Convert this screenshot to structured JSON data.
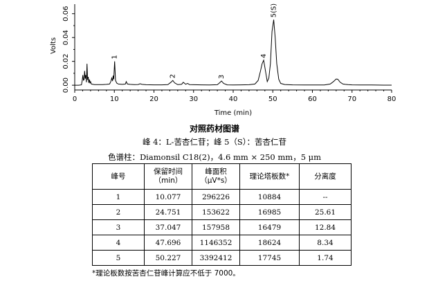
{
  "chart_data": {
    "type": "line",
    "xlabel": "Time (min)",
    "ylabel": "Volts",
    "xlim": [
      0,
      80
    ],
    "ylim": [
      -0.004,
      0.068
    ],
    "xticks": [
      0,
      10,
      20,
      30,
      40,
      50,
      60,
      70,
      80
    ],
    "yticks": [
      0.0,
      0.02,
      0.04,
      0.06
    ],
    "ytick_labels": [
      "0.00",
      "0.02",
      "0.04",
      "0.06"
    ],
    "grid": false,
    "series": [
      {
        "x": [
          0,
          1,
          1.7,
          1.9,
          2.05,
          2.2,
          2.35,
          2.5,
          2.65,
          2.8,
          2.95,
          3.1,
          3.25,
          3.4,
          3.55,
          3.7,
          3.85,
          4.0,
          4.2,
          4.5,
          5,
          6,
          7,
          8,
          8.8,
          9.1,
          9.35,
          9.55,
          9.7,
          9.85,
          10.077,
          10.3,
          10.6,
          11,
          12,
          12.8,
          13.0,
          13.3,
          14,
          15,
          16,
          16.5,
          17,
          18,
          20,
          22,
          23.5,
          24.3,
          24.751,
          25.2,
          26,
          27,
          27.4,
          28,
          28.5,
          29,
          30,
          32,
          34,
          36,
          36.5,
          37.047,
          37.6,
          38.5,
          40,
          42,
          44,
          45.5,
          46.3,
          46.9,
          47.3,
          47.696,
          48.1,
          48.6,
          49.0,
          49.4,
          49.8,
          50.227,
          50.6,
          51.0,
          51.5,
          52,
          53,
          55,
          58,
          61,
          63,
          64.5,
          65.3,
          66.0,
          66.4,
          67.0,
          67.7,
          68.3,
          69,
          70,
          72,
          75,
          78,
          80
        ],
        "y": [
          0.0,
          0.0,
          0.0003,
          0.0042,
          0.0085,
          0.0042,
          0.0045,
          0.012,
          0.0055,
          0.0085,
          0.0025,
          0.018,
          0.0045,
          0.007,
          0.002,
          0.0048,
          0.0016,
          0.003,
          0.001,
          0.0008,
          0.0005,
          0.0005,
          0.0005,
          0.0007,
          0.001,
          0.003,
          0.006,
          0.0035,
          0.008,
          0.005,
          0.02,
          0.004,
          0.0018,
          0.001,
          0.0007,
          0.001,
          0.003,
          0.001,
          0.0007,
          0.0005,
          0.0006,
          0.0012,
          0.0007,
          0.0004,
          0.0003,
          0.0003,
          0.0005,
          0.0025,
          0.004,
          0.002,
          0.0005,
          0.0008,
          0.0025,
          0.0008,
          0.0015,
          0.0005,
          0.0004,
          0.0003,
          0.0002,
          0.0004,
          0.0018,
          0.0035,
          0.0015,
          0.0003,
          0.0002,
          0.0003,
          0.0004,
          0.001,
          0.004,
          0.012,
          0.018,
          0.021,
          0.013,
          0.003,
          0.006,
          0.018,
          0.045,
          0.055,
          0.04,
          0.018,
          0.005,
          0.0015,
          0.0006,
          0.0003,
          0.0002,
          0.0002,
          0.0002,
          0.001,
          0.003,
          0.0052,
          0.005,
          0.0025,
          0.001,
          0.0007,
          0.0005,
          0.0003,
          0.0002,
          0.0002,
          0.0001,
          0.0001
        ]
      }
    ],
    "peak_labels": [
      {
        "label": "1",
        "x": 10.077,
        "y": 0.02
      },
      {
        "label": "2",
        "x": 24.751,
        "y": 0.004
      },
      {
        "label": "3",
        "x": 37.047,
        "y": 0.0035
      },
      {
        "label": "4",
        "x": 47.696,
        "y": 0.021
      },
      {
        "label": "5(S)",
        "x": 50.227,
        "y": 0.055
      }
    ]
  },
  "figure": {
    "title": "对照药材图谱",
    "caption_peaks": "峰 4：L-苦杏仁苷；峰 5（S）：苦杏仁苷",
    "caption_column": "色谱柱：Diamonsil C18(2)，4.6 mm × 250 mm，5 μm"
  },
  "table": {
    "headers": [
      "峰号",
      "保留时间\n（min）",
      "峰面积\n（μV*s）",
      "理论塔板数*",
      "分离度"
    ],
    "rows": [
      [
        "1",
        "10.077",
        "296226",
        "10884",
        "--"
      ],
      [
        "2",
        "24.751",
        "153622",
        "16985",
        "25.61"
      ],
      [
        "3",
        "37.047",
        "157958",
        "16479",
        "12.84"
      ],
      [
        "4",
        "47.696",
        "1146352",
        "18624",
        "8.34"
      ],
      [
        "5",
        "50.227",
        "3392412",
        "17745",
        "1.74"
      ]
    ],
    "footnote": "*理论板数按苦杏仁苷峰计算应不低于 7000。"
  }
}
